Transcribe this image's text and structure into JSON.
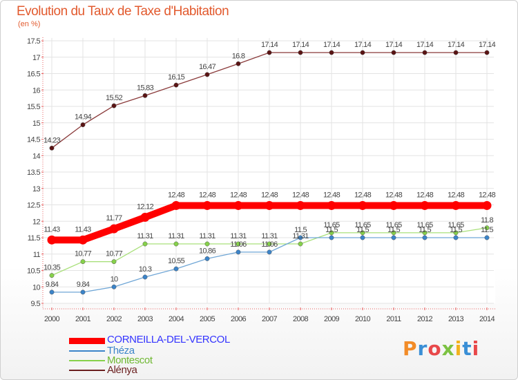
{
  "title": "Evolution du Taux de Taxe d'Habitation",
  "unit_label": "(en %)",
  "logo_text": "Proxiti",
  "chart_data": {
    "type": "line",
    "title": "Evolution du Taux de Taxe d'Habitation",
    "ylabel": "(en %)",
    "xlabel": "",
    "x": [
      "2000",
      "2001",
      "2002",
      "2003",
      "2004",
      "2005",
      "2006",
      "2007",
      "2008",
      "2009",
      "2010",
      "2011",
      "2012",
      "2013",
      "2014"
    ],
    "ylim": [
      9.5,
      17.5
    ],
    "yticks": [
      "9.5",
      "10",
      "10.5",
      "11",
      "11.5",
      "12",
      "12.5",
      "13",
      "13.5",
      "14",
      "14.5",
      "15",
      "15.5",
      "16",
      "16.5",
      "17",
      "17.5"
    ],
    "legend_position": "bottom-left",
    "series": [
      {
        "name": "CORNEILLA-DEL-VERCOL",
        "color": "#ff0000",
        "marker": "#ff0000",
        "legend_color": "#0000ff",
        "width": "thick",
        "values": [
          11.43,
          11.43,
          11.77,
          12.12,
          12.48,
          12.48,
          12.48,
          12.48,
          12.48,
          12.48,
          12.48,
          12.48,
          12.48,
          12.48,
          12.48
        ],
        "labels": [
          "11.43",
          "11.43",
          "11.77",
          "12.12",
          "12.48",
          "12.48",
          "12.48",
          "12.48",
          "12.48",
          "12.48",
          "12.48",
          "12.48",
          "12.48",
          "12.48",
          "12.48"
        ]
      },
      {
        "name": "Théza",
        "color": "#6fa6d6",
        "marker": "#3b84c9",
        "legend_color": "#3b84c9",
        "width": "thin",
        "values": [
          9.84,
          9.84,
          10,
          10.3,
          10.55,
          10.86,
          11.06,
          11.06,
          11.5,
          11.5,
          11.5,
          11.5,
          11.5,
          11.5,
          11.5
        ],
        "labels": [
          "9.84",
          "9.84",
          "10",
          "10.3",
          "10.55",
          "10.86",
          "11.06",
          "11.06",
          "11.5",
          "11.5",
          "11.5",
          "11.5",
          "11.5",
          "11.5",
          "11.5"
        ]
      },
      {
        "name": "Montescot",
        "color": "#a9e07a",
        "marker": "#86d14a",
        "legend_color": "#86d14a",
        "width": "thin",
        "values": [
          10.35,
          10.77,
          10.77,
          11.31,
          11.31,
          11.31,
          11.31,
          11.31,
          11.31,
          11.65,
          11.65,
          11.65,
          11.65,
          11.65,
          11.8
        ],
        "labels": [
          "10.35",
          "10.77",
          "10.77",
          "11.31",
          "11.31",
          "11.31",
          "11.31",
          "11.31",
          "11.31",
          "11.65",
          "11.65",
          "11.65",
          "11.65",
          "11.65",
          "11.8"
        ]
      },
      {
        "name": "Alénya",
        "color": "#8a3a3a",
        "marker": "#5a1414",
        "legend_color": "#6a1e1e",
        "width": "thin",
        "values": [
          14.23,
          14.94,
          15.52,
          15.83,
          16.15,
          16.47,
          16.8,
          17.14,
          17.14,
          17.14,
          17.14,
          17.14,
          17.14,
          17.14,
          17.14
        ],
        "labels": [
          "14.23",
          "14.94",
          "15.52",
          "15.83",
          "16.15",
          "16.47",
          "16.8",
          "17.14",
          "17.14",
          "17.14",
          "17.14",
          "17.14",
          "17.14",
          "17.14",
          "17.14"
        ]
      }
    ]
  }
}
